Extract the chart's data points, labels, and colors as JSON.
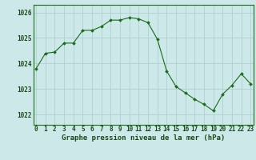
{
  "hours": [
    0,
    1,
    2,
    3,
    4,
    5,
    6,
    7,
    8,
    9,
    10,
    11,
    12,
    13,
    14,
    15,
    16,
    17,
    18,
    19,
    20,
    21,
    22,
    23
  ],
  "pressure": [
    1023.8,
    1024.4,
    1024.45,
    1024.8,
    1024.8,
    1025.3,
    1025.3,
    1025.45,
    1025.7,
    1025.7,
    1025.8,
    1025.75,
    1025.6,
    1024.95,
    1023.7,
    1023.1,
    1022.85,
    1022.6,
    1022.4,
    1022.15,
    1022.8,
    1023.15,
    1023.6,
    1023.2
  ],
  "line_color": "#1a6b1a",
  "marker_color": "#1a6b1a",
  "bg_color": "#cce8e8",
  "grid_color": "#aacccc",
  "ylabel_ticks": [
    1022,
    1023,
    1024,
    1025,
    1026
  ],
  "ylim": [
    1021.6,
    1026.3
  ],
  "xlim": [
    -0.3,
    23.3
  ],
  "xlabel": "Graphe pression niveau de la mer (hPa)",
  "xlabel_fontsize": 6.5,
  "tick_fontsize": 5.5,
  "ytick_fontsize": 5.5,
  "text_color": "#1a4a1a"
}
